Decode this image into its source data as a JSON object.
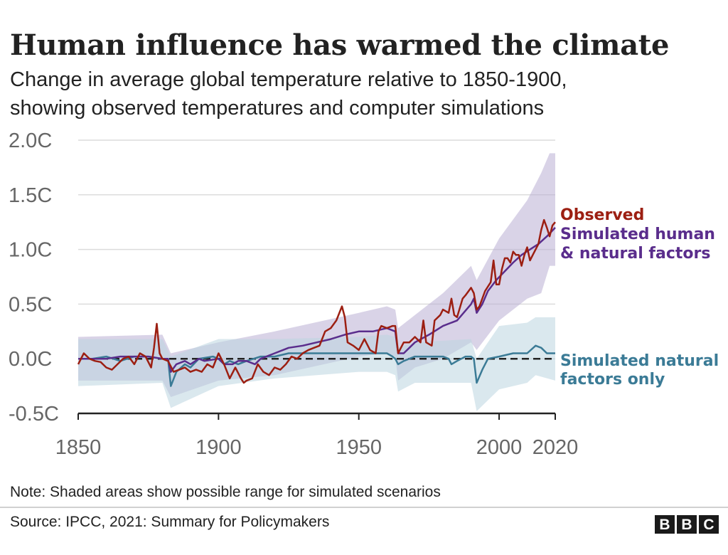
{
  "chart_data": {
    "type": "line",
    "title": "Human influence has warmed the climate",
    "subtitle": [
      "Change in average global temperature relative to 1850-1900,",
      "showing observed temperatures and computer simulations"
    ],
    "xlabel": "",
    "ylabel": "",
    "xlim": [
      1850,
      2020
    ],
    "ylim": [
      -0.5,
      2.0
    ],
    "x_ticks": [
      1850,
      1900,
      1950,
      2000,
      2020
    ],
    "x_tick_labels": [
      "1850",
      "1900",
      "1950",
      "2000",
      "2020"
    ],
    "y_ticks": [
      -0.5,
      0.0,
      0.5,
      1.0,
      1.5,
      2.0
    ],
    "y_tick_labels": [
      "-0.5C",
      "0.0C",
      "0.5C",
      "1.0C",
      "1.5C",
      "2.0C"
    ],
    "grid": "horizontal",
    "baseline": 0.0,
    "legend": "direct labels at right of lines",
    "series": [
      {
        "name": "Observed",
        "color": "#9c1f12",
        "points": [
          [
            1850,
            -0.05
          ],
          [
            1852,
            0.05
          ],
          [
            1854,
            0.0
          ],
          [
            1856,
            -0.02
          ],
          [
            1858,
            -0.03
          ],
          [
            1860,
            -0.08
          ],
          [
            1862,
            -0.1
          ],
          [
            1864,
            -0.05
          ],
          [
            1866,
            0.0
          ],
          [
            1868,
            0.02
          ],
          [
            1870,
            -0.05
          ],
          [
            1872,
            0.05
          ],
          [
            1874,
            0.02
          ],
          [
            1876,
            -0.08
          ],
          [
            1877,
            0.1
          ],
          [
            1878,
            0.32
          ],
          [
            1879,
            0.05
          ],
          [
            1880,
            0.0
          ],
          [
            1882,
            -0.02
          ],
          [
            1884,
            -0.12
          ],
          [
            1886,
            -0.1
          ],
          [
            1888,
            -0.08
          ],
          [
            1890,
            -0.12
          ],
          [
            1892,
            -0.1
          ],
          [
            1894,
            -0.12
          ],
          [
            1896,
            -0.05
          ],
          [
            1898,
            -0.08
          ],
          [
            1900,
            0.05
          ],
          [
            1902,
            -0.05
          ],
          [
            1904,
            -0.18
          ],
          [
            1906,
            -0.08
          ],
          [
            1908,
            -0.18
          ],
          [
            1909,
            -0.22
          ],
          [
            1910,
            -0.2
          ],
          [
            1912,
            -0.18
          ],
          [
            1914,
            -0.05
          ],
          [
            1916,
            -0.12
          ],
          [
            1918,
            -0.15
          ],
          [
            1920,
            -0.08
          ],
          [
            1922,
            -0.1
          ],
          [
            1924,
            -0.05
          ],
          [
            1926,
            0.02
          ],
          [
            1928,
            0.0
          ],
          [
            1930,
            0.05
          ],
          [
            1932,
            0.08
          ],
          [
            1934,
            0.1
          ],
          [
            1936,
            0.12
          ],
          [
            1938,
            0.25
          ],
          [
            1940,
            0.28
          ],
          [
            1942,
            0.35
          ],
          [
            1944,
            0.48
          ],
          [
            1945,
            0.38
          ],
          [
            1946,
            0.15
          ],
          [
            1948,
            0.12
          ],
          [
            1950,
            0.08
          ],
          [
            1952,
            0.18
          ],
          [
            1954,
            0.08
          ],
          [
            1956,
            0.05
          ],
          [
            1957,
            0.25
          ],
          [
            1958,
            0.3
          ],
          [
            1960,
            0.28
          ],
          [
            1962,
            0.3
          ],
          [
            1963,
            0.3
          ],
          [
            1964,
            0.05
          ],
          [
            1965,
            0.1
          ],
          [
            1966,
            0.15
          ],
          [
            1968,
            0.15
          ],
          [
            1970,
            0.2
          ],
          [
            1972,
            0.15
          ],
          [
            1973,
            0.35
          ],
          [
            1974,
            0.15
          ],
          [
            1976,
            0.12
          ],
          [
            1977,
            0.35
          ],
          [
            1979,
            0.4
          ],
          [
            1980,
            0.45
          ],
          [
            1982,
            0.42
          ],
          [
            1983,
            0.55
          ],
          [
            1984,
            0.4
          ],
          [
            1985,
            0.38
          ],
          [
            1987,
            0.55
          ],
          [
            1988,
            0.58
          ],
          [
            1990,
            0.65
          ],
          [
            1991,
            0.6
          ],
          [
            1992,
            0.45
          ],
          [
            1993,
            0.48
          ],
          [
            1995,
            0.62
          ],
          [
            1997,
            0.7
          ],
          [
            1998,
            0.9
          ],
          [
            1999,
            0.68
          ],
          [
            2000,
            0.68
          ],
          [
            2001,
            0.82
          ],
          [
            2002,
            0.92
          ],
          [
            2003,
            0.92
          ],
          [
            2004,
            0.88
          ],
          [
            2005,
            0.98
          ],
          [
            2006,
            0.95
          ],
          [
            2007,
            0.95
          ],
          [
            2008,
            0.85
          ],
          [
            2009,
            0.95
          ],
          [
            2010,
            1.02
          ],
          [
            2011,
            0.9
          ],
          [
            2012,
            0.95
          ],
          [
            2013,
            1.0
          ],
          [
            2014,
            1.05
          ],
          [
            2015,
            1.18
          ],
          [
            2016,
            1.27
          ],
          [
            2017,
            1.2
          ],
          [
            2018,
            1.12
          ],
          [
            2019,
            1.22
          ],
          [
            2020,
            1.25
          ]
        ]
      },
      {
        "name": "Simulated human & natural factors",
        "color": "#5a2d8c",
        "points": [
          [
            1850,
            0.0
          ],
          [
            1855,
            0.0
          ],
          [
            1860,
            0.0
          ],
          [
            1865,
            0.02
          ],
          [
            1870,
            0.02
          ],
          [
            1875,
            0.02
          ],
          [
            1880,
            0.0
          ],
          [
            1882,
            0.0
          ],
          [
            1883,
            -0.12
          ],
          [
            1885,
            -0.05
          ],
          [
            1888,
            -0.02
          ],
          [
            1890,
            -0.05
          ],
          [
            1893,
            0.0
          ],
          [
            1895,
            -0.02
          ],
          [
            1900,
            0.0
          ],
          [
            1902,
            -0.05
          ],
          [
            1905,
            -0.05
          ],
          [
            1907,
            -0.02
          ],
          [
            1910,
            -0.02
          ],
          [
            1913,
            -0.05
          ],
          [
            1915,
            0.0
          ],
          [
            1920,
            0.05
          ],
          [
            1925,
            0.1
          ],
          [
            1930,
            0.12
          ],
          [
            1935,
            0.15
          ],
          [
            1940,
            0.18
          ],
          [
            1945,
            0.22
          ],
          [
            1950,
            0.25
          ],
          [
            1955,
            0.25
          ],
          [
            1960,
            0.28
          ],
          [
            1963,
            0.25
          ],
          [
            1964,
            0.05
          ],
          [
            1966,
            0.05
          ],
          [
            1970,
            0.15
          ],
          [
            1975,
            0.22
          ],
          [
            1980,
            0.3
          ],
          [
            1985,
            0.35
          ],
          [
            1990,
            0.5
          ],
          [
            1991,
            0.55
          ],
          [
            1992,
            0.42
          ],
          [
            1994,
            0.5
          ],
          [
            1996,
            0.62
          ],
          [
            1999,
            0.72
          ],
          [
            2002,
            0.8
          ],
          [
            2005,
            0.88
          ],
          [
            2008,
            0.95
          ],
          [
            2011,
            1.0
          ],
          [
            2014,
            1.05
          ],
          [
            2017,
            1.12
          ],
          [
            2020,
            1.2
          ]
        ]
      },
      {
        "name": "Simulated natural factors only",
        "color": "#3b7b96",
        "points": [
          [
            1850,
            0.0
          ],
          [
            1855,
            0.0
          ],
          [
            1860,
            0.02
          ],
          [
            1865,
            -0.02
          ],
          [
            1870,
            0.02
          ],
          [
            1875,
            0.02
          ],
          [
            1880,
            0.0
          ],
          [
            1882,
            0.0
          ],
          [
            1883,
            -0.25
          ],
          [
            1885,
            -0.12
          ],
          [
            1888,
            -0.05
          ],
          [
            1890,
            -0.08
          ],
          [
            1893,
            0.0
          ],
          [
            1898,
            0.02
          ],
          [
            1900,
            0.0
          ],
          [
            1902,
            -0.05
          ],
          [
            1904,
            -0.02
          ],
          [
            1907,
            -0.05
          ],
          [
            1910,
            -0.02
          ],
          [
            1915,
            0.02
          ],
          [
            1920,
            0.02
          ],
          [
            1925,
            0.05
          ],
          [
            1930,
            0.05
          ],
          [
            1935,
            0.05
          ],
          [
            1940,
            0.05
          ],
          [
            1945,
            0.05
          ],
          [
            1950,
            0.05
          ],
          [
            1955,
            0.05
          ],
          [
            1960,
            0.05
          ],
          [
            1962,
            0.02
          ],
          [
            1963,
            0.0
          ],
          [
            1964,
            -0.05
          ],
          [
            1966,
            -0.02
          ],
          [
            1970,
            0.02
          ],
          [
            1975,
            0.02
          ],
          [
            1980,
            0.02
          ],
          [
            1982,
            0.0
          ],
          [
            1983,
            -0.05
          ],
          [
            1985,
            -0.02
          ],
          [
            1988,
            0.02
          ],
          [
            1990,
            0.02
          ],
          [
            1991,
            0.0
          ],
          [
            1992,
            -0.22
          ],
          [
            1994,
            -0.1
          ],
          [
            1996,
            0.0
          ],
          [
            2000,
            0.02
          ],
          [
            2005,
            0.05
          ],
          [
            2010,
            0.05
          ],
          [
            2013,
            0.12
          ],
          [
            2015,
            0.1
          ],
          [
            2017,
            0.05
          ],
          [
            2020,
            0.05
          ]
        ]
      }
    ],
    "ranges": [
      {
        "series": "Simulated human & natural factors",
        "color": "#b9aed3",
        "upper": [
          [
            1850,
            0.2
          ],
          [
            1880,
            0.22
          ],
          [
            1883,
            0.05
          ],
          [
            1900,
            0.15
          ],
          [
            1920,
            0.25
          ],
          [
            1950,
            0.42
          ],
          [
            1960,
            0.48
          ],
          [
            1963,
            0.45
          ],
          [
            1964,
            0.28
          ],
          [
            1970,
            0.4
          ],
          [
            1980,
            0.6
          ],
          [
            1990,
            0.85
          ],
          [
            1992,
            0.72
          ],
          [
            2000,
            1.1
          ],
          [
            2010,
            1.45
          ],
          [
            2015,
            1.7
          ],
          [
            2018,
            1.88
          ],
          [
            2020,
            1.88
          ]
        ],
        "lower": [
          [
            1850,
            -0.2
          ],
          [
            1880,
            -0.2
          ],
          [
            1883,
            -0.35
          ],
          [
            1900,
            -0.2
          ],
          [
            1920,
            -0.15
          ],
          [
            1950,
            0.02
          ],
          [
            1960,
            0.05
          ],
          [
            1963,
            0.02
          ],
          [
            1964,
            -0.2
          ],
          [
            1970,
            -0.08
          ],
          [
            1980,
            0.0
          ],
          [
            1990,
            0.15
          ],
          [
            1992,
            0.08
          ],
          [
            2000,
            0.35
          ],
          [
            2010,
            0.55
          ],
          [
            2015,
            0.6
          ],
          [
            2018,
            0.85
          ],
          [
            2020,
            0.85
          ]
        ]
      },
      {
        "series": "Simulated natural factors only",
        "color": "#bcd5e0",
        "upper": [
          [
            1850,
            0.18
          ],
          [
            1880,
            0.18
          ],
          [
            1883,
            0.02
          ],
          [
            1900,
            0.18
          ],
          [
            1920,
            0.18
          ],
          [
            1950,
            0.2
          ],
          [
            1960,
            0.22
          ],
          [
            1963,
            0.2
          ],
          [
            1964,
            0.1
          ],
          [
            1970,
            0.15
          ],
          [
            1990,
            0.18
          ],
          [
            1992,
            0.0
          ],
          [
            2000,
            0.3
          ],
          [
            2010,
            0.33
          ],
          [
            2013,
            0.38
          ],
          [
            2020,
            0.38
          ]
        ],
        "lower": [
          [
            1850,
            -0.25
          ],
          [
            1880,
            -0.22
          ],
          [
            1883,
            -0.45
          ],
          [
            1900,
            -0.25
          ],
          [
            1920,
            -0.18
          ],
          [
            1950,
            -0.12
          ],
          [
            1960,
            -0.12
          ],
          [
            1963,
            -0.15
          ],
          [
            1964,
            -0.3
          ],
          [
            1970,
            -0.22
          ],
          [
            1990,
            -0.22
          ],
          [
            1992,
            -0.48
          ],
          [
            2000,
            -0.28
          ],
          [
            2010,
            -0.22
          ],
          [
            2013,
            -0.15
          ],
          [
            2020,
            -0.2
          ]
        ]
      }
    ],
    "series_labels": [
      {
        "lines": [
          "Observed"
        ],
        "color": "#9c1f12"
      },
      {
        "lines": [
          "Simulated human",
          "& natural factors"
        ],
        "color": "#5a2d8c"
      },
      {
        "lines": [
          "Simulated natural",
          "factors only"
        ],
        "color": "#3b7b96"
      }
    ],
    "note": "Note: Shaded areas show possible range for simulated scenarios",
    "source": "Source: IPCC, 2021: Summary for Policymakers"
  },
  "branding": {
    "logo_letters": [
      "B",
      "B",
      "C"
    ]
  }
}
